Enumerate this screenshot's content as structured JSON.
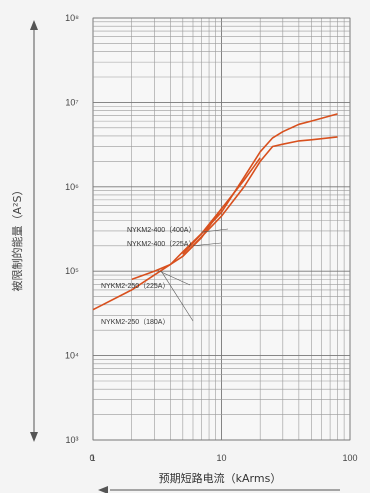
{
  "chart_data": {
    "type": "line",
    "xlabel": "预期短路电流（kArms）",
    "ylabel": "被限制的能量（A²S）",
    "x_scale": "log",
    "y_scale": "log",
    "xlim": [
      1,
      100
    ],
    "ylim": [
      1000,
      100000000
    ],
    "x_tick_labels": [
      "0",
      "1",
      "10",
      "100"
    ],
    "y_tick_labels": [
      "10³",
      "10⁴",
      "10⁵",
      "10⁶",
      "10⁷",
      "10⁸"
    ],
    "grid": true,
    "line_color": "#d8501e",
    "series": [
      {
        "name": "NYKM2-400（400A）",
        "x": [
          5,
          10,
          15,
          20,
          25,
          30,
          40,
          50,
          80
        ],
        "y": [
          160000,
          500000,
          1300000,
          2600000,
          3800000,
          4500000,
          5500000,
          6000000,
          7300000
        ]
      },
      {
        "name": "NYKM2-400（225A）",
        "x": [
          5,
          10,
          15,
          20,
          25,
          30,
          40,
          50,
          80
        ],
        "y": [
          150000,
          450000,
          1000000,
          2000000,
          3000000,
          3200000,
          3500000,
          3600000,
          3900000
        ]
      },
      {
        "name": "NYKM2-250（225A）",
        "x": [
          2,
          3,
          4,
          5,
          7,
          10,
          15,
          20
        ],
        "y": [
          80000,
          100000,
          120000,
          150000,
          250000,
          550000,
          1200000,
          2200000
        ]
      },
      {
        "name": "NYKM2-250（180A）",
        "x": [
          1,
          2,
          3,
          4,
          5,
          7,
          10
        ],
        "y": [
          35000,
          60000,
          90000,
          120000,
          170000,
          280000,
          550000
        ]
      }
    ]
  }
}
